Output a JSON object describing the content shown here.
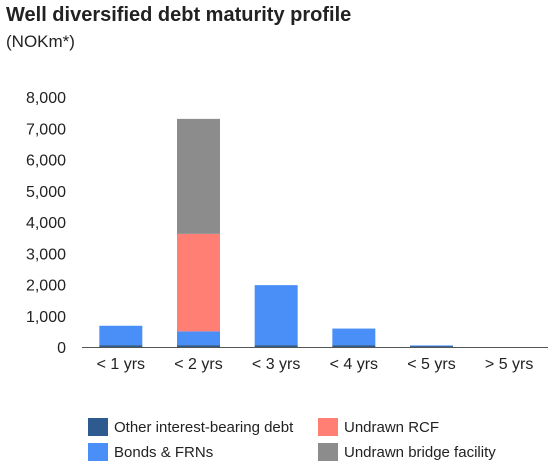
{
  "title": "Well diversified debt maturity profile",
  "subtitle": "(NOKm*)",
  "colors": {
    "other_debt": "#2e5b8f",
    "bonds": "#4a8ff7",
    "undrawn_rcf": "#ff7f75",
    "undrawn_bridge": "#8c8c8c",
    "axis": "#555555"
  },
  "chart_data": {
    "type": "bar",
    "stacked": true,
    "categories": [
      "< 1 yrs",
      "< 2 yrs",
      "< 3 yrs",
      "< 4 yrs",
      "< 5 yrs",
      "> 5 yrs"
    ],
    "series": [
      {
        "name": "Other interest-bearing debt",
        "color": "#2e5b8f",
        "values": [
          60,
          60,
          60,
          60,
          30,
          0
        ]
      },
      {
        "name": "Bonds & FRNs",
        "color": "#4a8ff7",
        "values": [
          620,
          440,
          1920,
          530,
          20,
          0
        ]
      },
      {
        "name": "Undrawn RCF",
        "color": "#ff7f75",
        "values": [
          0,
          3120,
          0,
          0,
          0,
          0
        ]
      },
      {
        "name": "Undrawn bridge facility",
        "color": "#8c8c8c",
        "values": [
          0,
          3680,
          0,
          0,
          0,
          0
        ]
      }
    ],
    "ylim": [
      0,
      8000
    ],
    "yticks": [
      "8,000",
      "7,000",
      "6,000",
      "5,000",
      "4,000",
      "3,000",
      "2,000",
      "1,000",
      "0"
    ],
    "ytick_values": [
      8000,
      7000,
      6000,
      5000,
      4000,
      3000,
      2000,
      1000,
      0
    ],
    "grid": false,
    "legend_position": "bottom"
  }
}
